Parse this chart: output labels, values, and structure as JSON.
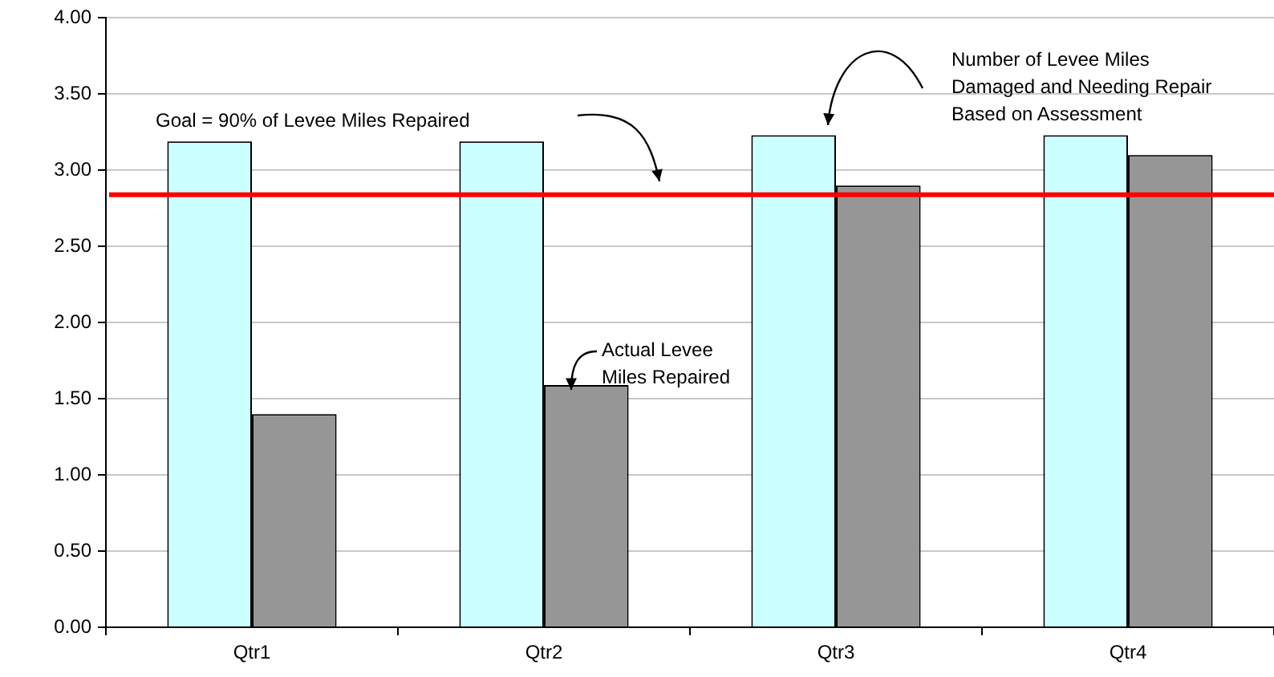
{
  "chart_data": {
    "type": "bar",
    "categories": [
      "Qtr1",
      "Qtr2",
      "Qtr3",
      "Qtr4"
    ],
    "series": [
      {
        "color": "#ccffff",
        "values": [
          3.19,
          3.19,
          3.23,
          3.23
        ]
      },
      {
        "color": "#969696",
        "values": [
          1.4,
          1.59,
          2.9,
          3.1
        ]
      }
    ],
    "ylim": [
      0,
      4
    ],
    "yticks": [
      {
        "value": 0,
        "label": "0.00"
      },
      {
        "value": 0.5,
        "label": "0.50"
      },
      {
        "value": 1,
        "label": "1.00"
      },
      {
        "value": 1.5,
        "label": "1.50"
      },
      {
        "value": 2,
        "label": "2.00"
      },
      {
        "value": 2.5,
        "label": "2.50"
      },
      {
        "value": 3,
        "label": "3.00"
      },
      {
        "value": 3.5,
        "label": "3.50"
      },
      {
        "value": 4,
        "label": "4.00"
      }
    ],
    "grid": "y",
    "legend": false,
    "ref_lines": [
      {
        "axis": "y",
        "value": 2.84,
        "color": "#ff0000"
      }
    ],
    "annotations": [
      "Goal = 90% of Levee Miles Repaired",
      "Actual Levee Miles Repaired",
      "Number of Levee Miles Damaged and Needing Repair Based on Assessment"
    ]
  }
}
